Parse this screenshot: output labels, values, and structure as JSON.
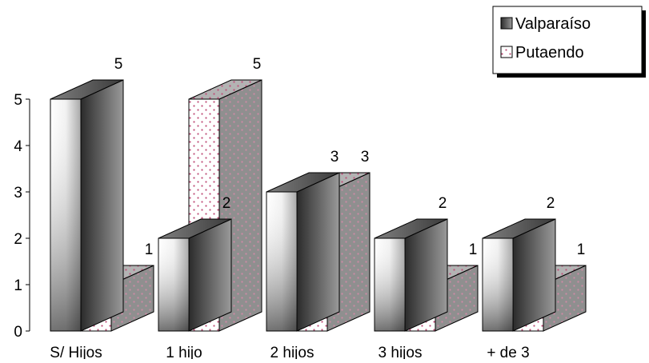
{
  "chart_data": {
    "type": "bar",
    "title": "",
    "xlabel": "",
    "ylabel": "",
    "ylim": [
      0,
      5
    ],
    "yticks": [
      0,
      1,
      2,
      3,
      4,
      5
    ],
    "grid": false,
    "three_d": true,
    "legend_position": "top-right",
    "categories": [
      "S/ Hijos",
      "1 hijo",
      "2 hijos",
      "3 hijos",
      "+ de 3"
    ],
    "series": [
      {
        "name": "Valparaíso",
        "values": [
          5,
          2,
          3,
          2,
          2
        ],
        "fill": "gradient",
        "color": "#4a4a4a"
      },
      {
        "name": "Putaendo",
        "values": [
          1,
          5,
          3,
          1,
          1
        ],
        "fill": "dotted",
        "color": "#c0507a"
      }
    ]
  }
}
